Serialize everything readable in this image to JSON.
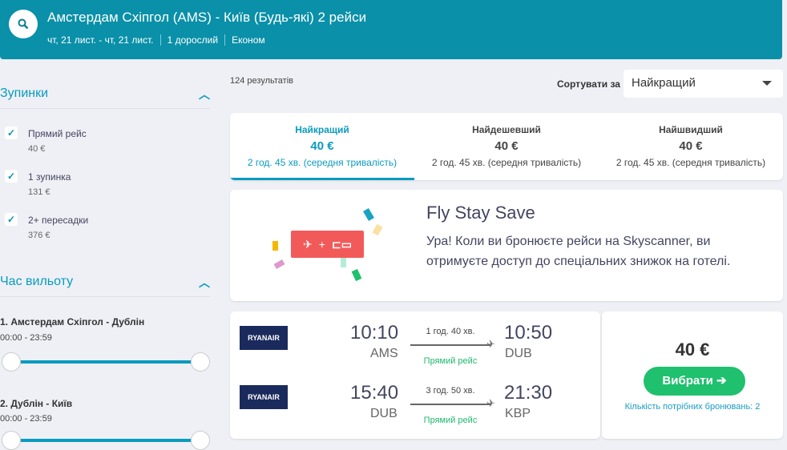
{
  "header": {
    "title": "Амстердам Схіпгол (AMS) - Київ (Будь-які) 2 рейси",
    "dates": "чт, 21 лист. - чт, 21 лист.",
    "passengers": "1 дорослий",
    "cabin": "Економ",
    "icon": "search-icon"
  },
  "sidebar": {
    "stops": {
      "title": "Зупинки",
      "items": [
        {
          "label": "Прямий рейс",
          "price": "40 €",
          "checked": true
        },
        {
          "label": "1 зупинка",
          "price": "131 €",
          "checked": true
        },
        {
          "label": "2+ пересадки",
          "price": "376 €",
          "checked": true
        }
      ]
    },
    "departure": {
      "title": "Час вильоту",
      "routes": [
        {
          "label": "1. Амстердам Схіпгол - Дублін",
          "range": "00:00 - 23:59"
        },
        {
          "label": "2. Дублін - Київ",
          "range": "00:00 - 23:59"
        }
      ]
    }
  },
  "results": {
    "count": "124 результатів",
    "sort_label": "Сортувати за",
    "sort_value": "Найкращий"
  },
  "tabs": [
    {
      "name": "Найкращий",
      "price": "40 €",
      "duration": "2 год. 45 хв. (середня тривалість)",
      "active": true
    },
    {
      "name": "Найдешевший",
      "price": "40 €",
      "duration": "2 год. 45 хв. (середня тривалість)"
    },
    {
      "name": "Найшвидший",
      "price": "40 €",
      "duration": "2 год. 45 хв. (середня тривалість)"
    }
  ],
  "promo": {
    "title": "Fly Stay Save",
    "text1": "Ура! Коли ви бронюєте рейси на Skyscanner, ви",
    "text2": "отримуєте доступ до спеціальних знижок на готелі.",
    "plus": "+"
  },
  "flight": {
    "legs": [
      {
        "airline": "RYANAIR",
        "dep": "10:10",
        "from": "AMS",
        "duration": "1 год. 40 хв.",
        "arr": "10:50",
        "to": "DUB",
        "type": "Прямий рейс"
      },
      {
        "airline": "RYANAIR",
        "dep": "15:40",
        "from": "DUB",
        "duration": "3 год. 50 хв.",
        "arr": "21:30",
        "to": "KBP",
        "type": "Прямий рейс"
      }
    ],
    "price": "40 €",
    "select": "Вибрати ➔",
    "bookings": "Кількість потрібних бронювань: 2"
  },
  "colors": {
    "header": "#0a90a8",
    "accent": "#0a9bbf",
    "cta": "#1fc06e",
    "promo": "#f25a5a"
  }
}
